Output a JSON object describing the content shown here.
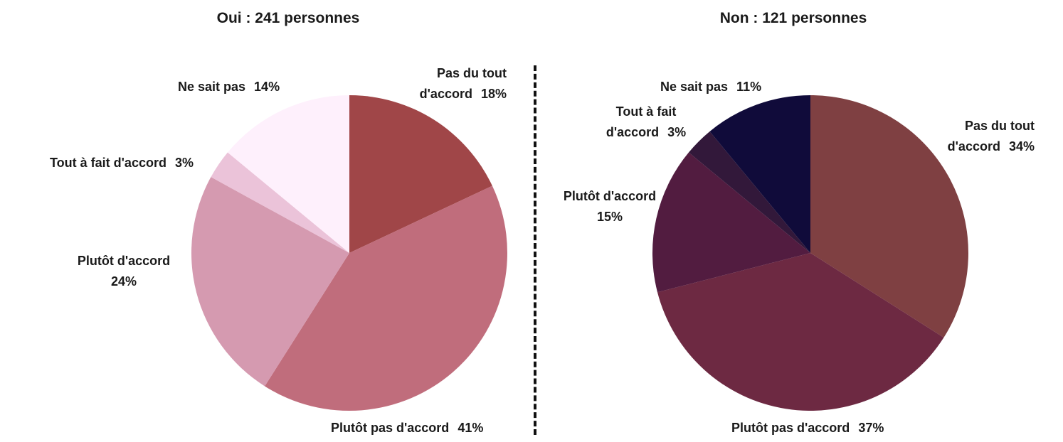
{
  "chart_data": [
    {
      "type": "pie",
      "title": "Oui : 241 personnes",
      "slices": [
        {
          "label": "Pas du tout d'accord",
          "lines": [
            "Pas du tout",
            "d'accord"
          ],
          "value": 18,
          "value_label": "18%",
          "color": "#A04648"
        },
        {
          "label": "Plutôt pas d'accord",
          "lines": [
            "Plutôt pas d'accord"
          ],
          "value": 41,
          "value_label": "41%",
          "color": "#C06D7C"
        },
        {
          "label": "Plutôt d'accord",
          "lines": [
            "Plutôt d'accord"
          ],
          "value": 24,
          "value_label": "24%",
          "color": "#D59AB0"
        },
        {
          "label": "Tout à fait d'accord",
          "lines": [
            "Tout à fait d'accord"
          ],
          "value": 3,
          "value_label": "3%",
          "color": "#EBC3D9"
        },
        {
          "label": "Ne sait pas",
          "lines": [
            "Ne sait pas"
          ],
          "value": 14,
          "value_label": "14%",
          "color": "#FEF0FC"
        }
      ]
    },
    {
      "type": "pie",
      "title": "Non : 121 personnes",
      "slices": [
        {
          "label": "Pas du tout d'accord",
          "lines": [
            "Pas du tout",
            "d'accord"
          ],
          "value": 34,
          "value_label": "34%",
          "color": "#7F4042"
        },
        {
          "label": "Plutôt pas d'accord",
          "lines": [
            "Plutôt pas d'accord"
          ],
          "value": 37,
          "value_label": "37%",
          "color": "#6D2942"
        },
        {
          "label": "Plutôt d'accord",
          "lines": [
            "Plutôt d'accord"
          ],
          "value": 15,
          "value_label": "15%",
          "color": "#521C40"
        },
        {
          "label": "Tout à fait d'accord",
          "lines": [
            "Tout à fait",
            "d'accord"
          ],
          "value": 3,
          "value_label": "3%",
          "color": "#32183A"
        },
        {
          "label": "Ne sait pas",
          "lines": [
            "Ne sait pas"
          ],
          "value": 11,
          "value_label": "11%",
          "color": "#100B3A"
        }
      ]
    }
  ]
}
